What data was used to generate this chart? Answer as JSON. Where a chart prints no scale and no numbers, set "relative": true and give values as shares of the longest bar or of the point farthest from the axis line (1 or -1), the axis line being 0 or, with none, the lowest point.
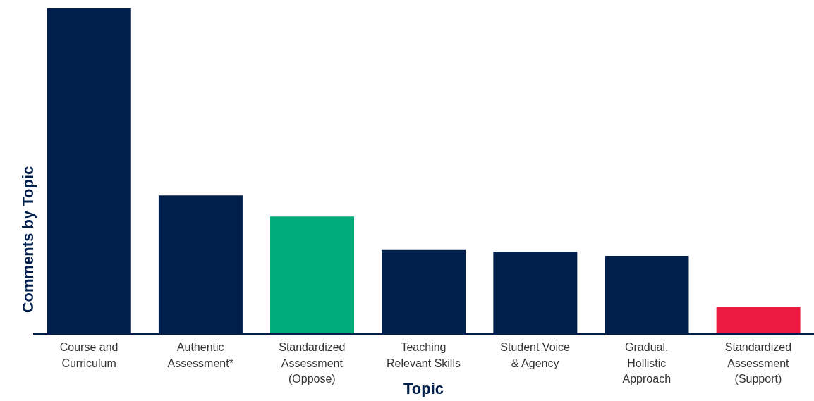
{
  "chart_data": {
    "type": "bar",
    "relative": true,
    "xlabel": "Topic",
    "ylabel": "Comments by Topic",
    "categories": [
      "Course and\nCurriculum",
      "Authentic\nAssessment*",
      "Standardized\nAssessment\n(Oppose)",
      "Teaching\nRelevant Skills",
      "Student Voice\n& Agency",
      "Gradual,\nHollistic\nApproach",
      "Standardized\nAssessment\n(Support)"
    ],
    "values": [
      1,
      0.426,
      0.361,
      0.258,
      0.253,
      0.24,
      0.082
    ],
    "colors": [
      "#001f4b",
      "#001f4b",
      "#00ab7a",
      "#001f4b",
      "#001f4b",
      "#001f4b",
      "#ed1b3f"
    ],
    "grid": false,
    "legend": false
  }
}
